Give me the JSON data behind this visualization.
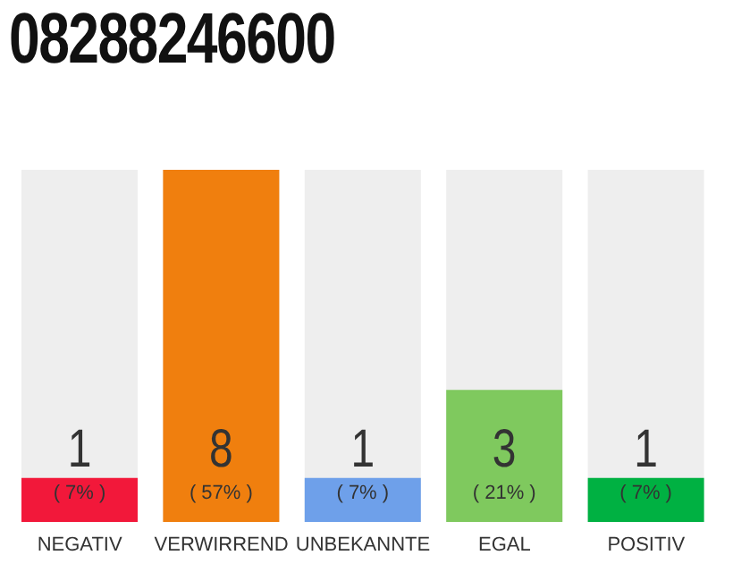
{
  "chart_data": {
    "type": "bar",
    "title": "08288246600",
    "categories": [
      "NEGATIV",
      "VERWIRREND",
      "UNBEKANNTE",
      "EGAL",
      "POSITIV"
    ],
    "values": [
      1,
      8,
      1,
      3,
      1
    ],
    "colors": [
      "#f2183a",
      "#f07f0e",
      "#6ea0ea",
      "#7fc95e",
      "#00b142"
    ],
    "data_labels": true,
    "annotations": [
      "( 7% )",
      "( 57% )",
      "( 7% )",
      "( 21% )",
      "( 7% )"
    ]
  }
}
